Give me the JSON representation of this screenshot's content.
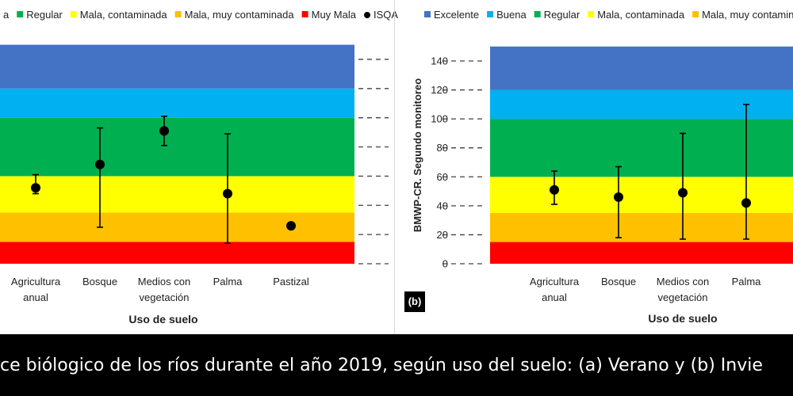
{
  "caption": "ce biólogico de los ríos durante el año 2019, según uso del suelo: (a) Verano y (b) Invie",
  "colors": {
    "excelente": "#4472c4",
    "buena": "#00b0f0",
    "regular": "#00b050",
    "mala_contaminada": "#ffff00",
    "mala_muy_contaminada": "#ffc000",
    "muy_mala": "#ff0000",
    "point": "#000000"
  },
  "chart_data": [
    {
      "type": "scatter",
      "panel": "a",
      "legend_position": "top",
      "legend": [
        "a",
        "Regular",
        "Mala, contaminada",
        "Mala, muy contaminada",
        "Muy Mala",
        "ISQA"
      ],
      "xlabel": "Uso de suelo",
      "ylabel": "",
      "ylim": [
        0,
        150
      ],
      "category_labels": [
        [
          "Agricultura",
          "anual"
        ],
        [
          "Bosque"
        ],
        [
          "Medios con",
          "vegetación"
        ],
        [
          "Palma"
        ],
        [
          "Pastizal"
        ]
      ],
      "bands": [
        {
          "from": 0,
          "to": 15,
          "color": "#ff0000"
        },
        {
          "from": 15,
          "to": 35,
          "color": "#ffc000"
        },
        {
          "from": 35,
          "to": 60,
          "color": "#ffff00"
        },
        {
          "from": 60,
          "to": 100,
          "color": "#00b050"
        },
        {
          "from": 100,
          "to": 120,
          "color": "#00b0f0"
        },
        {
          "from": 120,
          "to": 150,
          "color": "#4472c4"
        }
      ],
      "series": [
        {
          "name": "ISQA",
          "values": [
            52,
            68,
            91,
            48,
            26
          ],
          "low": [
            48,
            25,
            81,
            14,
            null
          ],
          "high": [
            61,
            93,
            101,
            89,
            null
          ]
        }
      ]
    },
    {
      "type": "scatter",
      "panel": "b",
      "legend_position": "top",
      "legend": [
        "Excelente",
        "Buena",
        "Regular",
        "Mala, contaminada",
        "Mala, muy contaminad"
      ],
      "xlabel": "Uso de suelo",
      "ylabel": "BMWP-CR. Segundo monitoreo",
      "ylim": [
        0,
        150
      ],
      "yticks": [
        "0",
        "20",
        "40",
        "60",
        "80",
        "100",
        "120",
        "140"
      ],
      "category_labels": [
        [
          "Agricultura",
          "anual"
        ],
        [
          "Bosque"
        ],
        [
          "Medios con",
          "vegetación"
        ],
        [
          "Palma"
        ]
      ],
      "bands": [
        {
          "from": 0,
          "to": 15,
          "color": "#ff0000"
        },
        {
          "from": 15,
          "to": 35,
          "color": "#ffc000"
        },
        {
          "from": 35,
          "to": 60,
          "color": "#ffff00"
        },
        {
          "from": 60,
          "to": 100,
          "color": "#00b050"
        },
        {
          "from": 100,
          "to": 120,
          "color": "#00b0f0"
        },
        {
          "from": 120,
          "to": 150,
          "color": "#4472c4"
        }
      ],
      "series": [
        {
          "name": "",
          "values": [
            51,
            46,
            49,
            42
          ],
          "low": [
            41,
            18,
            17,
            17
          ],
          "high": [
            64,
            67,
            90,
            110
          ]
        }
      ],
      "tag": "(b)"
    }
  ]
}
